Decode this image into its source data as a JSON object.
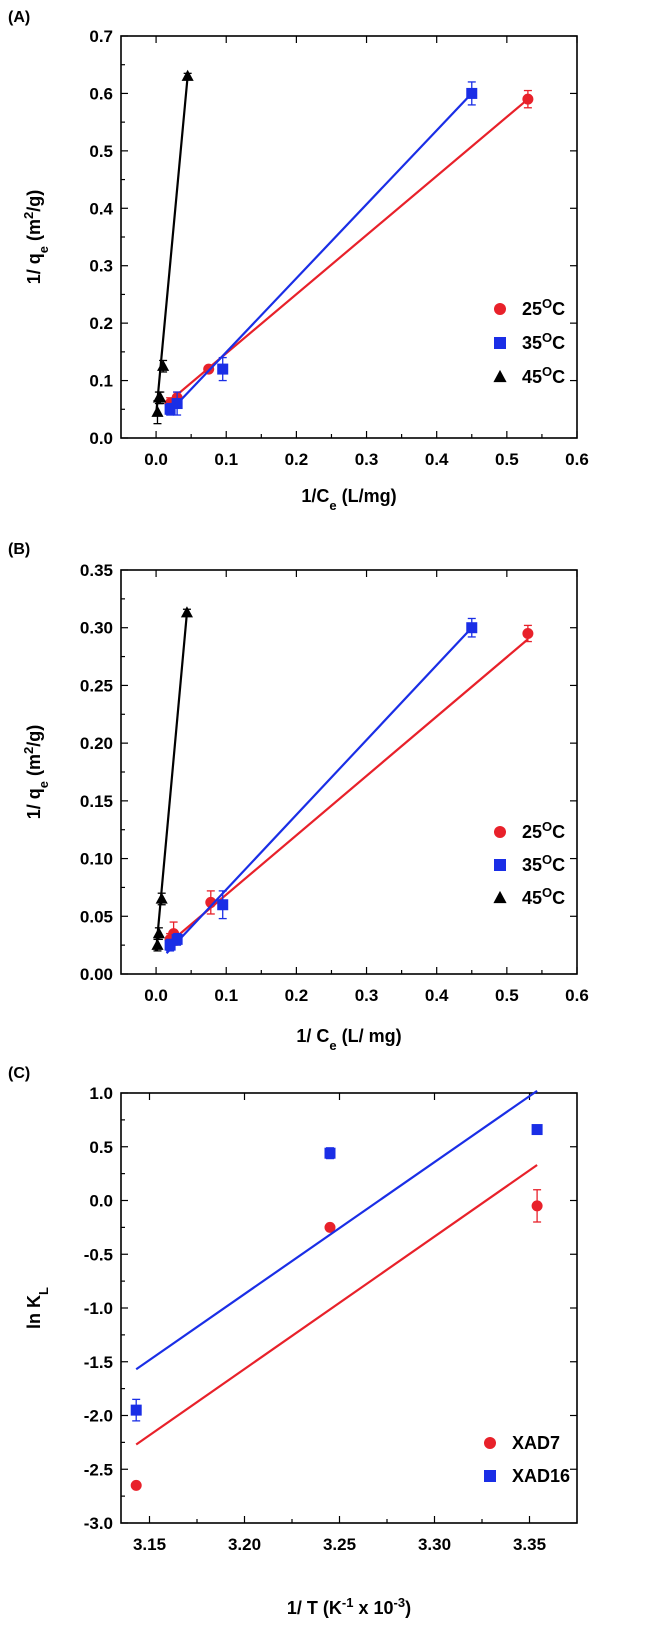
{
  "chart_data": [
    {
      "panel": "(A)",
      "type": "scatter",
      "ylabel_parts": [
        "1/ q",
        "e",
        " (m",
        "2",
        "/g)"
      ],
      "xlabel_parts": [
        "1/C",
        "e",
        " (L/mg)"
      ],
      "xlim": [
        -0.05,
        0.6
      ],
      "ylim": [
        0.0,
        0.7
      ],
      "xticks": [
        0.0,
        0.1,
        0.2,
        0.3,
        0.4,
        0.5,
        0.6
      ],
      "yticks": [
        0.0,
        0.1,
        0.2,
        0.3,
        0.4,
        0.5,
        0.6,
        0.7
      ],
      "xtick_labels": [
        "0.0",
        "0.1",
        "0.2",
        "0.3",
        "0.4",
        "0.5",
        "0.6"
      ],
      "ytick_labels": [
        "0.0",
        "0.1",
        "0.2",
        "0.3",
        "0.4",
        "0.5",
        "0.6",
        "0.7"
      ],
      "legend_position": "right-middle",
      "series": [
        {
          "name": "25",
          "name_sup": "O",
          "name_suffix": "C",
          "color": "#e8212a",
          "marker": "circle",
          "x": [
            0.02,
            0.03,
            0.075,
            0.53
          ],
          "y": [
            0.06,
            0.07,
            0.12,
            0.59
          ],
          "err": [
            0.01,
            0.01,
            0.005,
            0.015
          ],
          "fit": [
            [
              0.015,
              0.06
            ],
            [
              0.53,
              0.59
            ]
          ]
        },
        {
          "name": "35",
          "name_sup": "O",
          "name_suffix": "C",
          "color": "#1a2ee6",
          "marker": "square",
          "x": [
            0.02,
            0.03,
            0.095,
            0.45
          ],
          "y": [
            0.05,
            0.06,
            0.12,
            0.6
          ],
          "err": [
            0.01,
            0.02,
            0.02,
            0.02
          ],
          "fit": [
            [
              0.015,
              0.04
            ],
            [
              0.45,
              0.6
            ]
          ]
        },
        {
          "name": "45",
          "name_sup": "O",
          "name_suffix": "C",
          "color": "#000000",
          "marker": "triangle",
          "x": [
            0.002,
            0.004,
            0.006,
            0.01,
            0.045
          ],
          "y": [
            0.045,
            0.07,
            0.07,
            0.125,
            0.63
          ],
          "err": [
            0.02,
            0.01,
            0.01,
            0.01,
            0.005
          ],
          "fit": [
            [
              0.0,
              0.04
            ],
            [
              0.045,
              0.63
            ]
          ]
        }
      ]
    },
    {
      "panel": "(B)",
      "type": "scatter",
      "ylabel_parts": [
        "1/ q",
        "e",
        " (m",
        "2",
        "/g)"
      ],
      "xlabel_parts": [
        "1/ C",
        "e",
        " (L/ mg)"
      ],
      "xlim": [
        -0.05,
        0.6
      ],
      "ylim": [
        0.0,
        0.35
      ],
      "xticks": [
        0.0,
        0.1,
        0.2,
        0.3,
        0.4,
        0.5,
        0.6
      ],
      "yticks": [
        0.0,
        0.05,
        0.1,
        0.15,
        0.2,
        0.25,
        0.3,
        0.35
      ],
      "xtick_labels": [
        "0.0",
        "0.1",
        "0.2",
        "0.3",
        "0.4",
        "0.5",
        "0.6"
      ],
      "ytick_labels": [
        "0.00",
        "0.05",
        "0.10",
        "0.15",
        "0.20",
        "0.25",
        "0.30",
        "0.35"
      ],
      "legend_position": "right-middle",
      "series": [
        {
          "name": "25",
          "name_sup": "O",
          "name_suffix": "C",
          "color": "#e8212a",
          "marker": "circle",
          "x": [
            0.02,
            0.025,
            0.078,
            0.53
          ],
          "y": [
            0.03,
            0.035,
            0.062,
            0.295
          ],
          "err": [
            0.005,
            0.01,
            0.01,
            0.007
          ],
          "fit": [
            [
              0.015,
              0.025
            ],
            [
              0.53,
              0.29
            ]
          ]
        },
        {
          "name": "35",
          "name_sup": "O",
          "name_suffix": "C",
          "color": "#1a2ee6",
          "marker": "square",
          "x": [
            0.02,
            0.03,
            0.095,
            0.45
          ],
          "y": [
            0.025,
            0.03,
            0.06,
            0.3
          ],
          "err": [
            0.005,
            0.005,
            0.012,
            0.008
          ],
          "fit": [
            [
              0.015,
              0.018
            ],
            [
              0.45,
              0.3
            ]
          ]
        },
        {
          "name": "45",
          "name_sup": "O",
          "name_suffix": "C",
          "color": "#000000",
          "marker": "triangle",
          "x": [
            0.002,
            0.004,
            0.008,
            0.044
          ],
          "y": [
            0.025,
            0.035,
            0.065,
            0.313
          ],
          "err": [
            0.005,
            0.005,
            0.005,
            0.003
          ],
          "fit": [
            [
              0.0,
              0.02
            ],
            [
              0.044,
              0.313
            ]
          ]
        }
      ]
    },
    {
      "panel": "(C)",
      "type": "scatter",
      "ylabel_parts": [
        "ln K",
        "L",
        "",
        "",
        ""
      ],
      "xlabel_parts": [
        "1/ T (K",
        "-1",
        " x 10",
        "-3",
        ")"
      ],
      "xlim": [
        3.135,
        3.375
      ],
      "ylim": [
        -3.0,
        1.0
      ],
      "xticks": [
        3.15,
        3.2,
        3.25,
        3.3,
        3.35
      ],
      "yticks": [
        -3.0,
        -2.5,
        -2.0,
        -1.5,
        -1.0,
        -0.5,
        0.0,
        0.5,
        1.0
      ],
      "xtick_labels": [
        "3.15",
        "3.20",
        "3.25",
        "3.30",
        "3.35"
      ],
      "ytick_labels": [
        "-3.0",
        "-2.5",
        "-2.0",
        "-1.5",
        "-1.0",
        "-0.5",
        "0.0",
        "0.5",
        "1.0"
      ],
      "legend_position": "bottom-right",
      "series": [
        {
          "name": "XAD7",
          "name_sup": "",
          "name_suffix": "",
          "color": "#e8212a",
          "marker": "circle",
          "x": [
            3.143,
            3.245,
            3.354
          ],
          "y": [
            -2.65,
            -0.25,
            -0.05
          ],
          "err": [
            0.0,
            0.0,
            0.15
          ],
          "fit": [
            [
              3.143,
              -2.27
            ],
            [
              3.354,
              0.33
            ]
          ]
        },
        {
          "name": "XAD16",
          "name_sup": "",
          "name_suffix": "",
          "color": "#1a2ee6",
          "marker": "square",
          "x": [
            3.143,
            3.245,
            3.354
          ],
          "y": [
            -1.95,
            0.44,
            0.66
          ],
          "err": [
            0.1,
            0.05,
            0.0
          ],
          "fit": [
            [
              3.143,
              -1.57
            ],
            [
              3.354,
              1.02
            ]
          ]
        }
      ]
    }
  ]
}
